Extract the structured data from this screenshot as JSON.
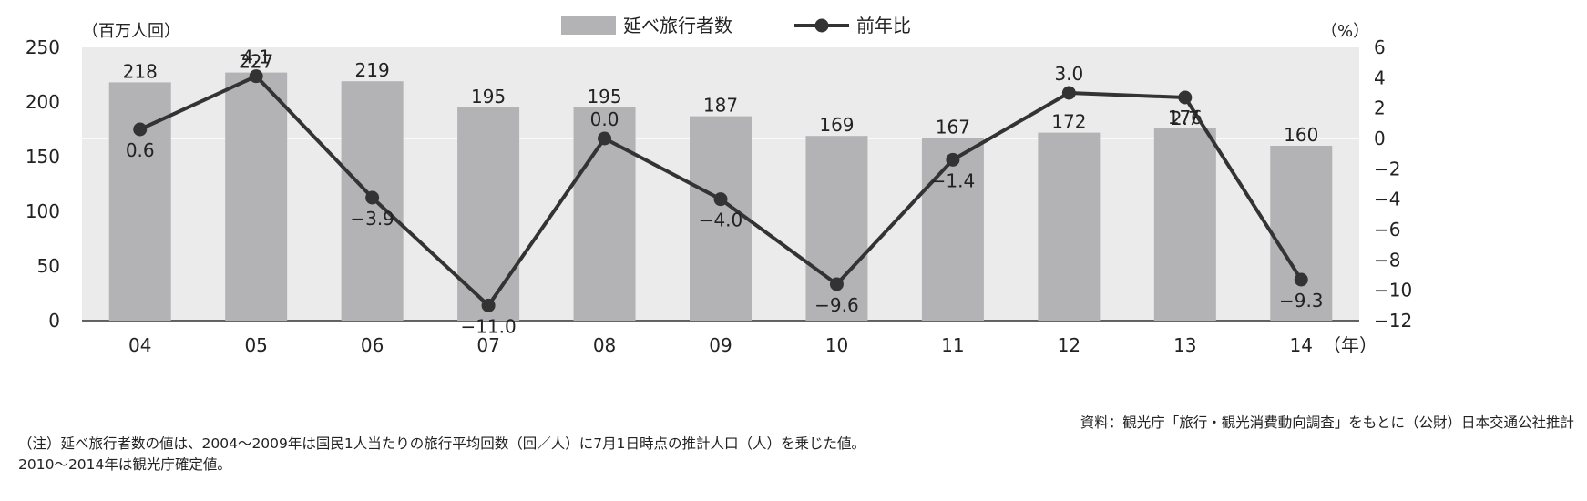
{
  "chart_data": {
    "type": "bar+line",
    "categories": [
      "04",
      "05",
      "06",
      "07",
      "08",
      "09",
      "10",
      "11",
      "12",
      "13",
      "14"
    ],
    "x_unit": "（年）",
    "series": [
      {
        "name": "延べ旅行者数",
        "axis": "left",
        "kind": "bar",
        "values": [
          218,
          227,
          219,
          195,
          195,
          187,
          169,
          167,
          172,
          176,
          160
        ],
        "labels": [
          "218",
          "227",
          "219",
          "195",
          "195",
          "187",
          "169",
          "167",
          "172",
          "176",
          "160"
        ],
        "color": "#b3b3b5"
      },
      {
        "name": "前年比",
        "axis": "right",
        "kind": "line",
        "values": [
          0.6,
          4.1,
          -3.9,
          -11.0,
          0.0,
          -4.0,
          -9.6,
          -1.4,
          3.0,
          2.7,
          -9.3
        ],
        "labels": [
          "0.6",
          "4.1",
          "−3.9",
          "−11.0",
          "0.0",
          "−4.0",
          "−9.6",
          "−1.4",
          "3.0",
          "2.7",
          "−9.3"
        ],
        "color": "#333333"
      }
    ],
    "left_axis": {
      "unit": "（百万人回）",
      "min": 0,
      "max": 250,
      "ticks": [
        "0",
        "50",
        "100",
        "150",
        "200",
        "250"
      ]
    },
    "right_axis": {
      "unit": "（%）",
      "min": -12,
      "max": 6,
      "ticks": [
        "6",
        "4",
        "2",
        "0",
        "−2",
        "−4",
        "−6",
        "−8",
        "−10",
        "−12"
      ]
    },
    "legend_position": "top-center",
    "plot_background": "#ebebeb"
  },
  "source": "資料：観光庁「旅行・観光消費動向調査」をもとに（公財）日本交通公社推計",
  "notes": [
    "（注）延べ旅行者数の値は、2004〜2009年は国民1人当たりの旅行平均回数（回／人）に7月1日時点の推計人口（人）を乗じた値。",
    "2010〜2014年は観光庁確定値。"
  ]
}
